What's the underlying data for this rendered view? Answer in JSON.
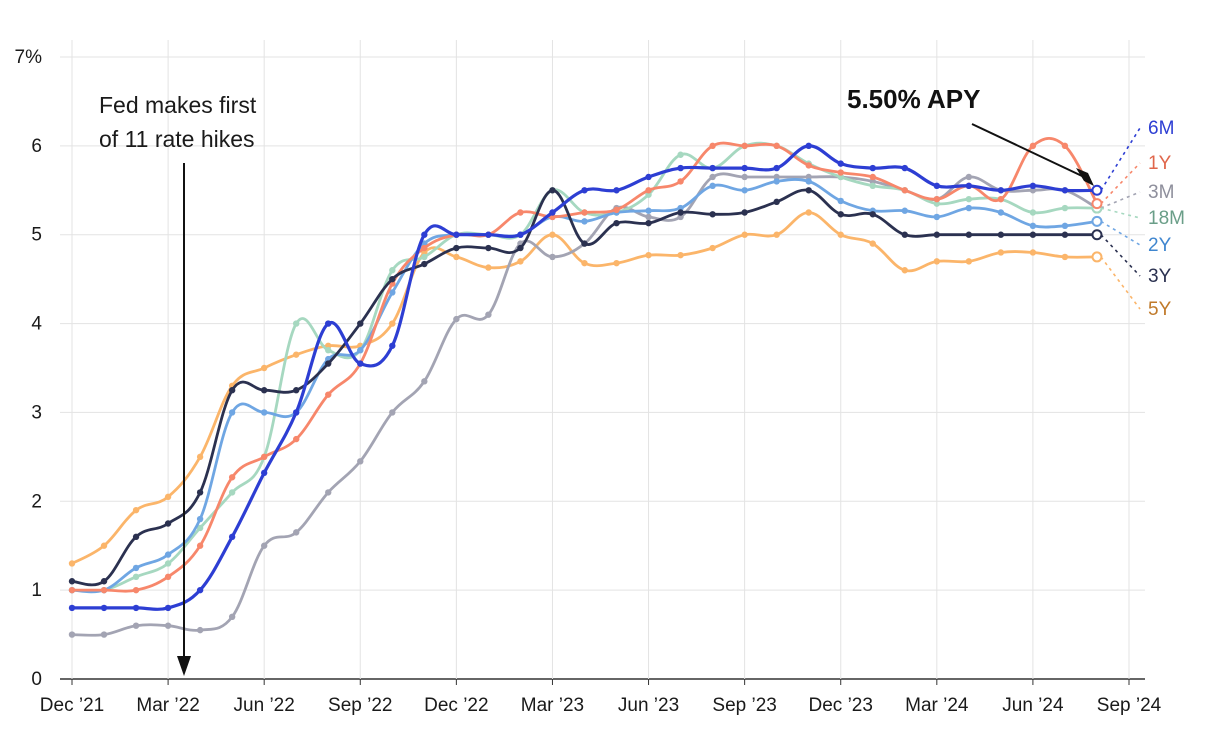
{
  "chart_data": {
    "type": "line",
    "title": "",
    "xlabel": "",
    "ylabel": "",
    "ylim": [
      0,
      7
    ],
    "y_ticks": [
      {
        "value": 0,
        "label": "0"
      },
      {
        "value": 1,
        "label": "1"
      },
      {
        "value": 2,
        "label": "2"
      },
      {
        "value": 3,
        "label": "3"
      },
      {
        "value": 4,
        "label": "4"
      },
      {
        "value": 5,
        "label": "5"
      },
      {
        "value": 6,
        "label": "6"
      },
      {
        "value": 7,
        "label": "7%"
      }
    ],
    "x_ticks": [
      {
        "month": 0,
        "label": "Dec ’21"
      },
      {
        "month": 3,
        "label": "Mar ’22"
      },
      {
        "month": 6,
        "label": "Jun ’22"
      },
      {
        "month": 9,
        "label": "Sep ’22"
      },
      {
        "month": 12,
        "label": "Dec ’22"
      },
      {
        "month": 15,
        "label": "Mar ’23"
      },
      {
        "month": 18,
        "label": "Jun ’23"
      },
      {
        "month": 21,
        "label": "Sep ’23"
      },
      {
        "month": 24,
        "label": "Dec ’23"
      },
      {
        "month": 27,
        "label": "Mar ’24"
      },
      {
        "month": 30,
        "label": "Jun ’24"
      },
      {
        "month": 33,
        "label": "Sep ’24"
      }
    ],
    "x_unit": "months since Dec 2021",
    "x": [
      0,
      1,
      2,
      3,
      4,
      5,
      6,
      7,
      8,
      9,
      10,
      11,
      12,
      13,
      14,
      15,
      16,
      17,
      18,
      19,
      20,
      21,
      22,
      23,
      24,
      25,
      26,
      27,
      28,
      29,
      30,
      31,
      32
    ],
    "series": [
      {
        "name": "5Y",
        "color": "#fbb56a",
        "label_color": "#c07a2a",
        "values": [
          1.3,
          1.5,
          1.9,
          2.05,
          2.5,
          3.3,
          3.5,
          3.65,
          3.75,
          3.75,
          4.0,
          4.8,
          4.75,
          4.63,
          4.7,
          5.0,
          4.68,
          4.68,
          4.77,
          4.77,
          4.85,
          5.0,
          5.0,
          5.25,
          5.0,
          4.9,
          4.6,
          4.7,
          4.7,
          4.8,
          4.8,
          4.75,
          4.75
        ]
      },
      {
        "name": "3M",
        "color": "#a3a4b3",
        "label_color": "#8e8f9c",
        "values": [
          0.5,
          0.5,
          0.6,
          0.6,
          0.55,
          0.7,
          1.5,
          1.65,
          2.1,
          2.45,
          3.0,
          3.35,
          4.05,
          4.1,
          4.9,
          4.75,
          4.9,
          5.3,
          5.2,
          5.2,
          5.65,
          5.65,
          5.65,
          5.65,
          5.65,
          5.6,
          5.5,
          5.4,
          5.65,
          5.5,
          5.5,
          5.5,
          5.3
        ]
      },
      {
        "name": "18M",
        "color": "#a6d8c0",
        "label_color": "#6a9e88",
        "values": [
          1.0,
          1.0,
          1.15,
          1.3,
          1.7,
          2.1,
          2.5,
          4.0,
          3.7,
          3.7,
          4.6,
          4.75,
          5.0,
          5.0,
          5.0,
          5.5,
          5.25,
          5.25,
          5.45,
          5.9,
          5.75,
          6.0,
          6.0,
          5.8,
          5.65,
          5.55,
          5.5,
          5.35,
          5.4,
          5.4,
          5.25,
          5.3,
          5.3
        ]
      },
      {
        "name": "2Y",
        "color": "#6fa6e3",
        "label_color": "#3f86cf",
        "values": [
          1.0,
          1.0,
          1.25,
          1.4,
          1.8,
          3.0,
          3.0,
          3.0,
          3.6,
          3.7,
          4.35,
          4.9,
          5.0,
          5.0,
          5.0,
          5.2,
          5.15,
          5.25,
          5.27,
          5.3,
          5.55,
          5.5,
          5.6,
          5.6,
          5.38,
          5.27,
          5.27,
          5.2,
          5.3,
          5.25,
          5.1,
          5.1,
          5.15
        ]
      },
      {
        "name": "1Y",
        "color": "#f7876b",
        "label_color": "#e0664b",
        "values": [
          1.0,
          1.0,
          1.0,
          1.15,
          1.5,
          2.27,
          2.5,
          2.7,
          3.2,
          3.55,
          4.45,
          4.85,
          5.0,
          5.0,
          5.25,
          5.2,
          5.25,
          5.28,
          5.5,
          5.6,
          6.0,
          6.0,
          6.0,
          5.78,
          5.7,
          5.65,
          5.5,
          5.4,
          5.55,
          5.4,
          6.0,
          6.0,
          5.35
        ]
      },
      {
        "name": "3Y",
        "color": "#2b3150",
        "label_color": "#2b3150",
        "values": [
          1.1,
          1.1,
          1.6,
          1.75,
          2.1,
          3.25,
          3.25,
          3.25,
          3.55,
          4.0,
          4.5,
          4.67,
          4.85,
          4.85,
          4.85,
          5.5,
          4.9,
          5.13,
          5.13,
          5.25,
          5.23,
          5.25,
          5.37,
          5.5,
          5.23,
          5.23,
          5.0,
          5.0,
          5.0,
          5.0,
          5.0,
          5.0,
          5.0
        ]
      },
      {
        "name": "6M",
        "color": "#2d3ed3",
        "label_color": "#2d3ed3",
        "values": [
          0.8,
          0.8,
          0.8,
          0.8,
          1.0,
          1.6,
          2.32,
          3.0,
          4.0,
          3.55,
          3.75,
          5.0,
          5.0,
          5.0,
          5.0,
          5.25,
          5.5,
          5.5,
          5.65,
          5.75,
          5.75,
          5.75,
          5.75,
          6.0,
          5.8,
          5.75,
          5.75,
          5.55,
          5.55,
          5.5,
          5.55,
          5.5,
          5.5
        ]
      }
    ],
    "legend_order": [
      "6M",
      "1Y",
      "3M",
      "18M",
      "2Y",
      "3Y",
      "5Y"
    ],
    "annotations": [
      {
        "text_lines": [
          "Fed makes first",
          "of 11 rate hikes"
        ],
        "at_month": 3.5
      },
      {
        "text": "5.50% APY",
        "points_to": {
          "month": 32,
          "value": 5.5
        }
      }
    ]
  }
}
